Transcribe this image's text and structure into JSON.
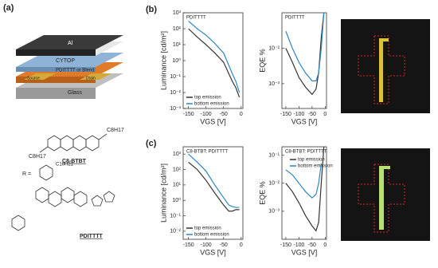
{
  "figure": {
    "panel_labels": [
      "(a)",
      "(b)",
      "(c)"
    ],
    "device_labels": [
      "Al",
      "CYTOP",
      "PDITTTT or Blend",
      "Source",
      "Drain",
      "Glass"
    ],
    "molecule_labels": [
      "C8H17",
      "C8H17",
      "C8-BTBT",
      "R =",
      "C10H21",
      "PDITTTT"
    ]
  },
  "chart_data": [
    {
      "type": "line",
      "title": "PDITTTT",
      "xlabel": "VGS [V]",
      "ylabel": "Luminance [cd/m²]",
      "log_y": true,
      "legend": "lower left",
      "x": [
        -150,
        -125,
        -100,
        -75,
        -50,
        -35,
        -25,
        -15,
        -5
      ],
      "xlim": [
        -165,
        5
      ],
      "xticks": [
        -150,
        -100,
        -50,
        0
      ],
      "ylim": [
        0.001,
        1000
      ],
      "yticks": [
        {
          "value": 0.001,
          "label": "10⁻³"
        },
        {
          "value": 0.01,
          "label": "10⁻²"
        },
        {
          "value": 0.1,
          "label": "10⁻¹"
        },
        {
          "value": 1,
          "label": "10⁰"
        },
        {
          "value": 10,
          "label": "10¹"
        },
        {
          "value": 100,
          "label": "10²"
        },
        {
          "value": 1000,
          "label": "10³"
        }
      ],
      "series": [
        {
          "name": "top emission",
          "color": "#333333",
          "values": [
            100,
            30,
            10,
            3,
            0.8,
            0.15,
            0.05,
            0.02,
            0.005
          ]
        },
        {
          "name": "bottom emission",
          "color": "#2e86c1",
          "values": [
            300,
            100,
            40,
            12,
            3,
            0.5,
            0.15,
            0.05,
            0.01
          ]
        }
      ]
    },
    {
      "type": "line",
      "title": "PDITTTT",
      "xlabel": "VGS [V]",
      "ylabel": "EQE %",
      "log_y": true,
      "x": [
        -150,
        -125,
        -100,
        -75,
        -50,
        -35,
        -25,
        -15,
        -5
      ],
      "xlim": [
        -165,
        5
      ],
      "xticks": [
        -150,
        -100,
        -50,
        0
      ],
      "ylim": [
        0.0002,
        0.1
      ],
      "yticks": [
        {
          "value": 0.001,
          "label": "10⁻³"
        },
        {
          "value": 0.01,
          "label": "10⁻²"
        }
      ],
      "series": [
        {
          "color": "#333333",
          "values": [
            0.01,
            0.004,
            0.0015,
            0.0008,
            0.0005,
            0.0007,
            0.002,
            0.02,
            0.1
          ]
        },
        {
          "color": "#2e86c1",
          "values": [
            0.03,
            0.01,
            0.004,
            0.002,
            0.0012,
            0.0012,
            0.002,
            0.01,
            0.1
          ]
        }
      ]
    },
    {
      "type": "line",
      "title": "C8-BTBT: PDITTTT",
      "xlabel": "VGS [V]",
      "ylabel": "Luminance [cd/m²]",
      "log_y": true,
      "legend": "lower left",
      "x": [
        -150,
        -125,
        -100,
        -75,
        -50,
        -35,
        -25,
        -15,
        -5
      ],
      "xlim": [
        -165,
        5
      ],
      "xticks": [
        -150,
        -100,
        -50,
        0
      ],
      "ylim": [
        0.003,
        3000
      ],
      "yticks": [
        {
          "value": 0.01,
          "label": "10⁻²"
        },
        {
          "value": 0.1,
          "label": "10⁻¹"
        },
        {
          "value": 1,
          "label": "10⁰"
        },
        {
          "value": 10,
          "label": "10¹"
        },
        {
          "value": 100,
          "label": "10²"
        },
        {
          "value": 1000,
          "label": "10³"
        }
      ],
      "series": [
        {
          "name": "top emission",
          "color": "#333333",
          "values": [
            300,
            100,
            20,
            3,
            0.5,
            0.2,
            0.2,
            0.25,
            0.25
          ]
        },
        {
          "name": "bottom emission",
          "color": "#2e86c1",
          "values": [
            1000,
            300,
            80,
            10,
            1.5,
            0.5,
            0.4,
            0.35,
            0.35
          ]
        }
      ]
    },
    {
      "type": "line",
      "title": "C8-BTBT: PDITTTT",
      "xlabel": "VGS [V]",
      "ylabel": "EQE %",
      "log_y": true,
      "legend": "upper right",
      "x": [
        -150,
        -125,
        -100,
        -75,
        -50,
        -35,
        -25,
        -15,
        -5
      ],
      "xlim": [
        -165,
        5
      ],
      "xticks": [
        -150,
        -100,
        -50,
        0
      ],
      "ylim": [
        0.0001,
        0.2
      ],
      "yticks": [
        {
          "value": 0.001,
          "label": "10⁻³"
        },
        {
          "value": 0.01,
          "label": "10⁻²"
        },
        {
          "value": 0.1,
          "label": "10⁻¹"
        }
      ],
      "series": [
        {
          "name": "top emission",
          "color": "#333333",
          "values": [
            0.01,
            0.005,
            0.002,
            0.0007,
            0.0003,
            0.0002,
            0.0004,
            0.01,
            0.2
          ]
        },
        {
          "name": "bottom emission",
          "color": "#2e86c1",
          "values": [
            0.03,
            0.02,
            0.01,
            0.005,
            0.003,
            0.004,
            0.01,
            0.05,
            null
          ]
        }
      ]
    }
  ]
}
